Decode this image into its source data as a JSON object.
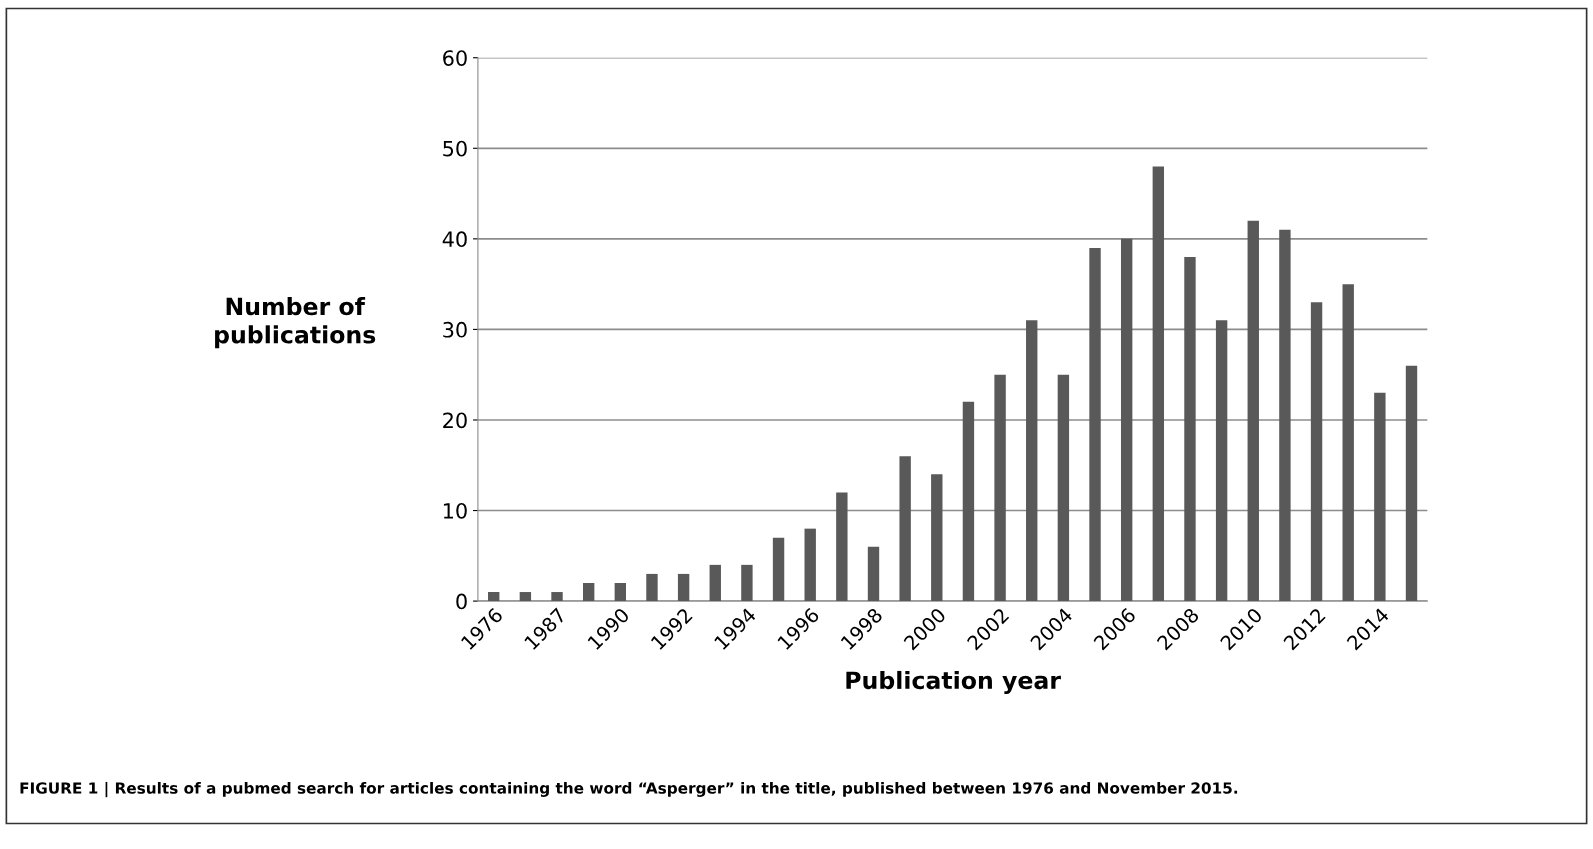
{
  "chart_data": {
    "type": "bar",
    "categories": [
      "1976",
      null,
      "1987",
      null,
      "1990",
      null,
      "1992",
      null,
      "1994",
      null,
      "1996",
      null,
      "1998",
      null,
      "2000",
      null,
      "2002",
      null,
      "2004",
      null,
      "2006",
      null,
      "2008",
      null,
      "2010",
      null,
      "2012",
      null,
      "2014",
      null
    ],
    "values": [
      1,
      1,
      1,
      2,
      2,
      3,
      3,
      4,
      4,
      7,
      8,
      12,
      6,
      16,
      14,
      22,
      25,
      31,
      25,
      39,
      40,
      48,
      38,
      31,
      42,
      41,
      33,
      35,
      23,
      26
    ],
    "color": "#595959",
    "xlabel": "Publication year",
    "ylabel": "Number of\npublications",
    "ylim": [
      0,
      60
    ],
    "yticks": [
      0,
      10,
      20,
      30,
      40,
      50,
      60
    ],
    "grid": "y",
    "annotations": [
      "FIGURE 1 | Results of a pubmed search for articles containing the word “Asperger” in the title, published between 1976 and November 2015."
    ]
  }
}
